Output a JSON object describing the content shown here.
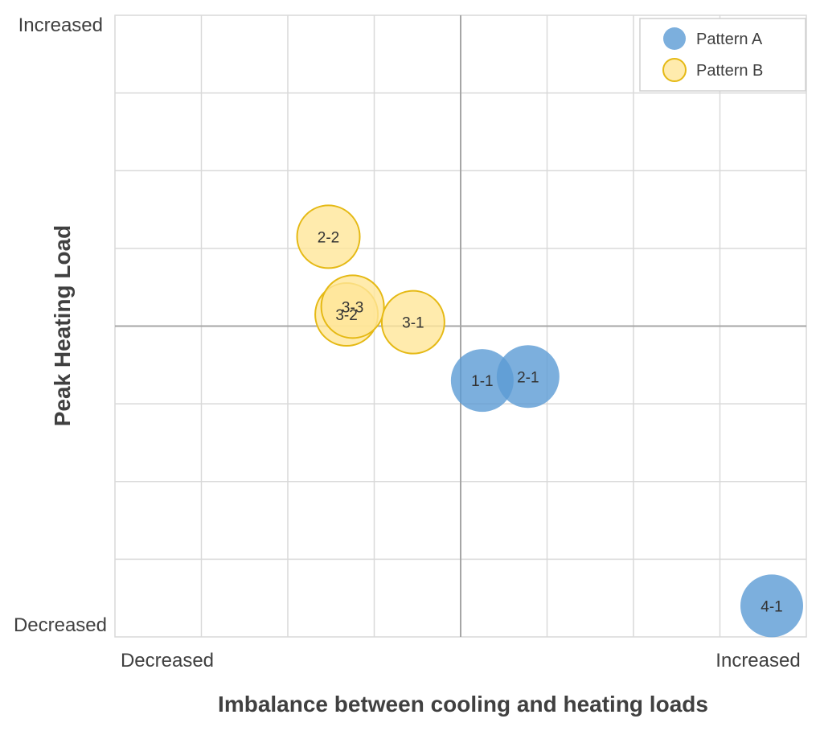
{
  "chart_data": {
    "type": "scatter",
    "xlabel": "Imbalance between cooling and heating loads",
    "ylabel": "Peak Heating Load",
    "xlim": [
      0,
      8
    ],
    "ylim": [
      0,
      8
    ],
    "grid": true,
    "center_lines": {
      "x": 4,
      "y": 4
    },
    "x_tick_labels": {
      "min": "Decreased",
      "max": "Increased"
    },
    "y_tick_labels": {
      "min": "Decreased",
      "max": "Increased"
    },
    "legend": {
      "position": "top-right",
      "entries": [
        "Pattern A",
        "Pattern B"
      ]
    },
    "series": [
      {
        "name": "Pattern A",
        "color": "#5b9bd5",
        "points": [
          {
            "label": "1-1",
            "x": 4.25,
            "y": 3.3
          },
          {
            "label": "2-1",
            "x": 4.78,
            "y": 3.35
          },
          {
            "label": "4-1",
            "x": 7.6,
            "y": 0.4
          }
        ]
      },
      {
        "name": "Pattern B",
        "color": "#ffd966",
        "points": [
          {
            "label": "2-2",
            "x": 2.47,
            "y": 5.15
          },
          {
            "label": "3-2",
            "x": 2.68,
            "y": 4.15
          },
          {
            "label": "3-3",
            "x": 2.75,
            "y": 4.25
          },
          {
            "label": "3-1",
            "x": 3.45,
            "y": 4.05
          }
        ]
      }
    ]
  }
}
